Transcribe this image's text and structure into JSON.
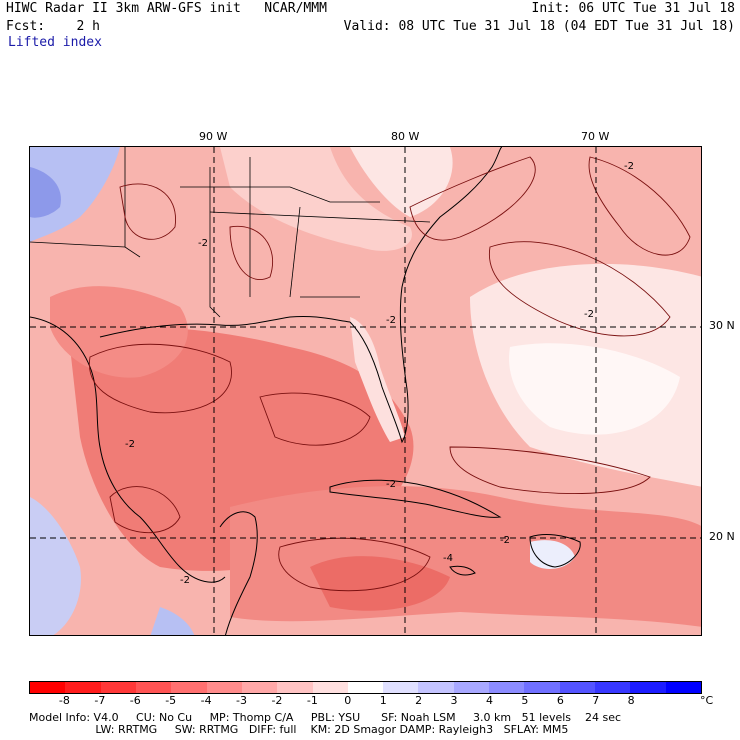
{
  "header": {
    "line1_left": "HIWC Radar II 3km ARW-GFS init   NCAR/MMM",
    "line1_right": "Init: 06 UTC Tue 31 Jul 18",
    "line2_left": "Fcst:    2 h",
    "line2_right": "Valid: 08 UTC Tue 31 Jul 18 (04 EDT Tue 31 Jul 18)",
    "field": "Lifted index"
  },
  "map": {
    "lon_labels": [
      "90 W",
      "80 W",
      "70 W"
    ],
    "lat_labels": [
      "30 N",
      "20 N"
    ],
    "contour_labels": [
      "-2",
      "-2",
      "-2",
      "-2",
      "-2",
      "-2",
      "-4",
      "-2",
      "-2"
    ]
  },
  "colorbar": {
    "unit": "°C",
    "ticks": [
      "-8",
      "-7",
      "-6",
      "-5",
      "-4",
      "-3",
      "-2",
      "-1",
      "0",
      "1",
      "2",
      "3",
      "4",
      "5",
      "6",
      "7",
      "8"
    ],
    "colors": [
      "#ff0000",
      "#ff1c1c",
      "#ff3838",
      "#ff5454",
      "#ff7070",
      "#ff8c8c",
      "#ffa8a8",
      "#ffc4c4",
      "#ffe0e0",
      "#ffffff",
      "#e0e0ff",
      "#c4c4ff",
      "#a8a8ff",
      "#8c8cff",
      "#7070ff",
      "#5454ff",
      "#3838ff",
      "#1c1cff",
      "#0000ff"
    ]
  },
  "footer": {
    "line1": "Model Info: V4.0     CU: No Cu     MP: Thomp C/A     PBL: YSU      SF: Noah LSM     3.0 km   51 levels    24 sec",
    "line2": "                   LW: RRTMG     SW: RRTMG   DIFF: full    KM: 2D Smagor DAMP: Rayleigh3   SFLAY: MM5"
  }
}
